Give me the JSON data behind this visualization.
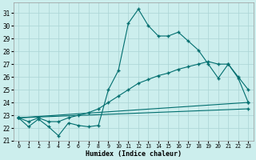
{
  "xlabel": "Humidex (Indice chaleur)",
  "bg_color": "#cceeed",
  "line_color": "#006e6e",
  "grid_color": "#aad4d4",
  "xlim": [
    -0.5,
    23.5
  ],
  "ylim": [
    21.0,
    31.8
  ],
  "yticks": [
    21,
    22,
    23,
    24,
    25,
    26,
    27,
    28,
    29,
    30,
    31
  ],
  "xticks": [
    0,
    1,
    2,
    3,
    4,
    5,
    6,
    7,
    8,
    9,
    10,
    11,
    12,
    13,
    14,
    15,
    16,
    17,
    18,
    19,
    20,
    21,
    22,
    23
  ],
  "line1_x": [
    0,
    1,
    2,
    3,
    4,
    5,
    6,
    7,
    8,
    9,
    10,
    11,
    12,
    13,
    14,
    15,
    16,
    17,
    18,
    19,
    20,
    21,
    22,
    23
  ],
  "line1_y": [
    22.8,
    22.1,
    22.7,
    22.1,
    21.4,
    22.4,
    22.2,
    22.1,
    22.2,
    25.0,
    26.5,
    30.2,
    31.3,
    30.0,
    29.2,
    29.2,
    29.5,
    28.8,
    28.1,
    27.0,
    25.9,
    27.0,
    25.9,
    24.0
  ],
  "line2_x": [
    0,
    1,
    2,
    3,
    4,
    5,
    6,
    7,
    8,
    9,
    10,
    11,
    12,
    13,
    14,
    15,
    16,
    17,
    18,
    19,
    20,
    21,
    22,
    23
  ],
  "line2_y": [
    22.8,
    22.5,
    22.8,
    22.5,
    22.5,
    22.8,
    23.0,
    23.2,
    23.5,
    24.0,
    24.5,
    25.0,
    25.5,
    25.8,
    26.1,
    26.3,
    26.6,
    26.8,
    27.0,
    27.2,
    27.0,
    27.0,
    26.0,
    25.0
  ],
  "line3_x": [
    0,
    23
  ],
  "line3_y": [
    22.8,
    24.0
  ],
  "line4_x": [
    0,
    23
  ],
  "line4_y": [
    22.8,
    23.5
  ]
}
